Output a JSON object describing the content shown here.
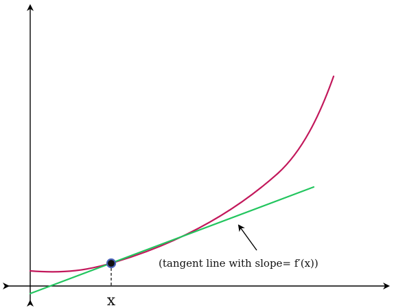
{
  "labels": {
    "x_point": "x",
    "annotation": "(tangent line with slope= f′(x))"
  },
  "colors": {
    "axes": "#000000",
    "curve": "#c2185b",
    "tangent": "#22c55e",
    "point_fill": "#111111",
    "point_ring": "#4a63b8"
  }
}
